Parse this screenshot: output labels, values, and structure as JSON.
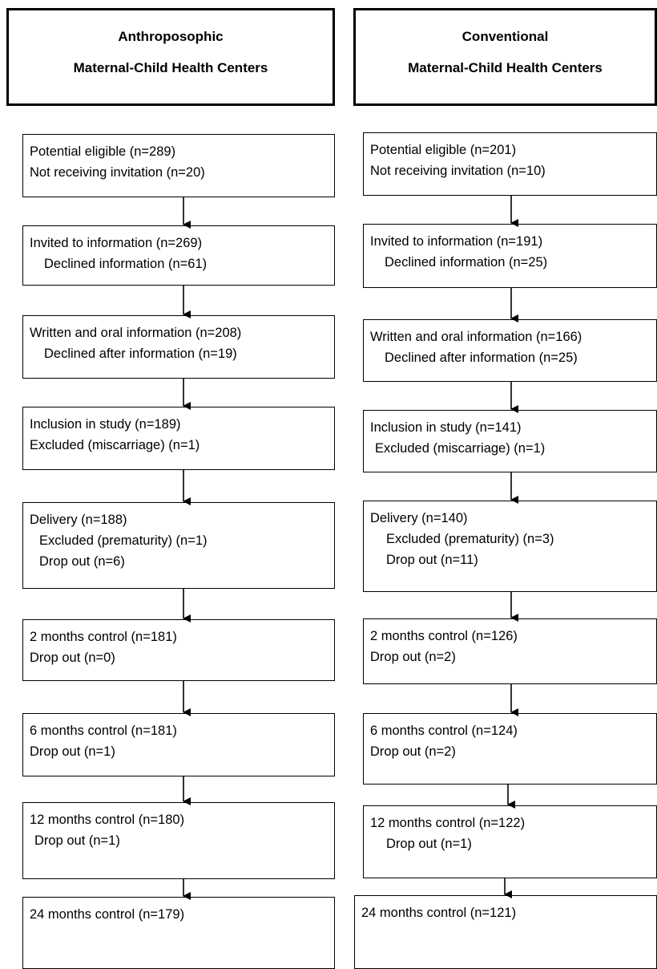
{
  "headers": {
    "left": {
      "line1": "Anthroposophic",
      "line2": "Maternal-Child Health Centers"
    },
    "right": {
      "line1": "Conventional",
      "line2": "Maternal-Child Health Centers"
    }
  },
  "left": [
    [
      "Potential eligible (n=289)",
      "Not receiving invitation (n=20)"
    ],
    [
      "Invited to information (n=269)",
      "Declined information (n=61)"
    ],
    [
      "Written and oral information (n=208)",
      "Declined after information (n=19)"
    ],
    [
      "Inclusion in study (n=189)",
      "Excluded (miscarriage) (n=1)"
    ],
    [
      "Delivery (n=188)",
      "Excluded (prematurity) (n=1)",
      "Drop out (n=6)"
    ],
    [
      "2 months control (n=181)",
      "Drop out (n=0)"
    ],
    [
      "6 months control (n=181)",
      "Drop out (n=1)"
    ],
    [
      "12 months control (n=180)",
      "Drop out (n=1)"
    ],
    [
      "24 months control (n=179)"
    ]
  ],
  "right": [
    [
      "Potential eligible (n=201)",
      "Not receiving invitation (n=10)"
    ],
    [
      "Invited to information (n=191)",
      "Declined information (n=25)"
    ],
    [
      "Written and oral information (n=166)",
      "Declined after information (n=25)"
    ],
    [
      "Inclusion in study (n=141)",
      "Excluded (miscarriage) (n=1)"
    ],
    [
      "Delivery (n=140)",
      "Excluded (prematurity) (n=3)",
      "Drop out (n=11)"
    ],
    [
      "2 months control (n=126)",
      "Drop out (n=2)"
    ],
    [
      "6 months control (n=124)",
      "Drop out (n=2)"
    ],
    [
      "12 months control (n=122)",
      "Drop out (n=1)"
    ],
    [
      "24 months control (n=121)"
    ]
  ]
}
